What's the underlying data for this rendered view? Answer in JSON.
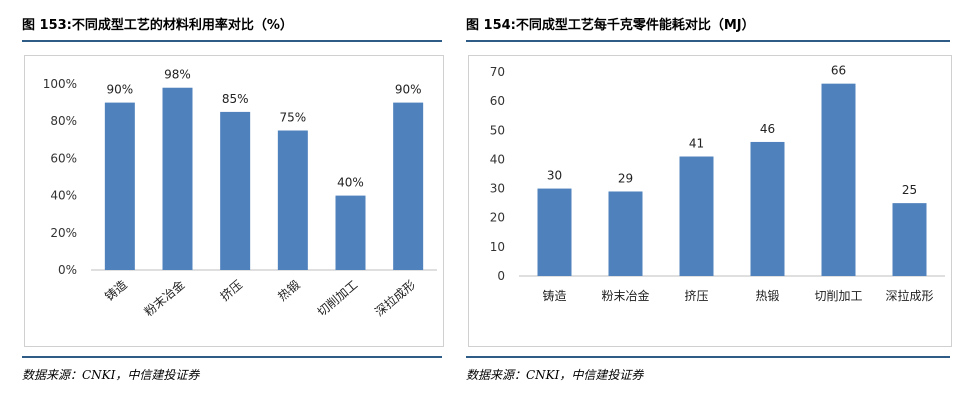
{
  "figures": [
    {
      "title": "图 153:不同成型工艺的材料利用率对比（%）",
      "source": "数据来源：CNKI，中信建投证券"
    },
    {
      "title": "图 154:不同成型工艺每千克零件能耗对比（MJ）",
      "source": "数据来源：CNKI，中信建投证券"
    }
  ],
  "chart_data": [
    {
      "type": "bar",
      "title": "图 153:不同成型工艺的材料利用率对比（%）",
      "categories": [
        "铸造",
        "粉末冶金",
        "挤压",
        "热锻",
        "切削加工",
        "深拉成形"
      ],
      "values": [
        90,
        98,
        85,
        75,
        40,
        90
      ],
      "data_labels": [
        "90%",
        "98%",
        "85%",
        "75%",
        "40%",
        "90%"
      ],
      "ylim": [
        0,
        100
      ],
      "yticks": [
        0,
        20,
        40,
        60,
        80,
        100
      ],
      "ytick_labels": [
        "0%",
        "20%",
        "40%",
        "60%",
        "80%",
        "100%"
      ],
      "xlabel": "",
      "ylabel": "",
      "grid": false,
      "category_label_rotation": "rotated",
      "bar_color": "#4f81bd"
    },
    {
      "type": "bar",
      "title": "图 154:不同成型工艺每千克零件能耗对比（MJ）",
      "categories": [
        "铸造",
        "粉末冶金",
        "挤压",
        "热锻",
        "切削加工",
        "深拉成形"
      ],
      "values": [
        30,
        29,
        41,
        46,
        66,
        25
      ],
      "data_labels": [
        "30",
        "29",
        "41",
        "46",
        "66",
        "25"
      ],
      "ylim": [
        0,
        70
      ],
      "yticks": [
        0,
        10,
        20,
        30,
        40,
        50,
        60,
        70
      ],
      "ytick_labels": [
        "0",
        "10",
        "20",
        "30",
        "40",
        "50",
        "60",
        "70"
      ],
      "xlabel": "",
      "ylabel": "",
      "grid": false,
      "category_label_rotation": "horizontal",
      "bar_color": "#4f81bd"
    }
  ]
}
